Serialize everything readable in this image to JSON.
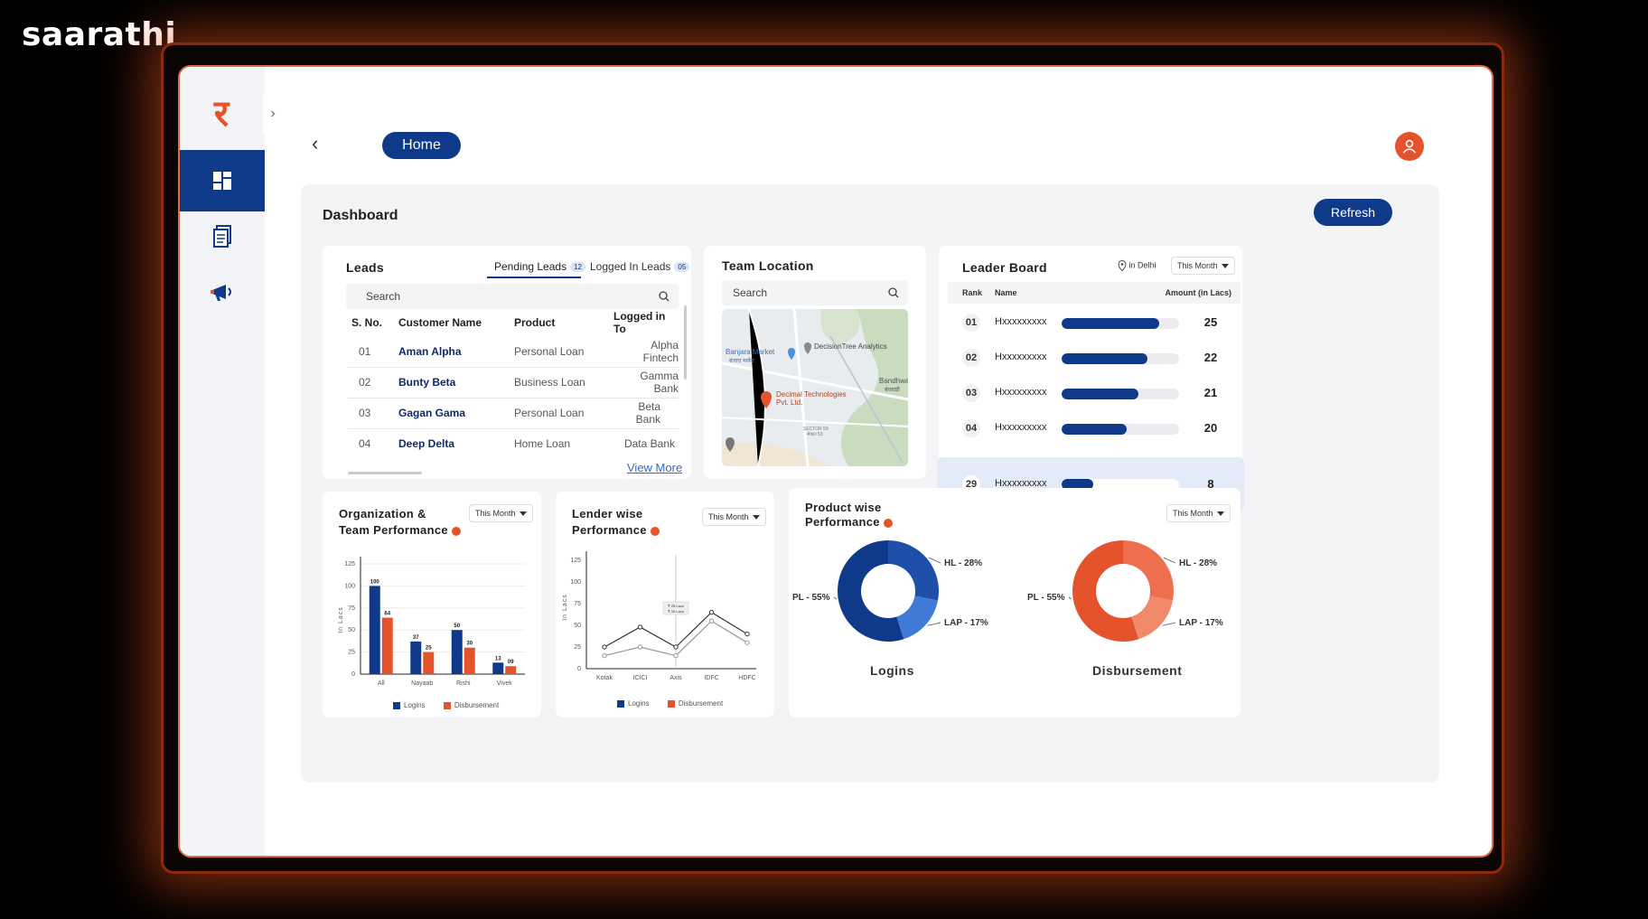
{
  "brand": "saarathi",
  "header": {
    "back_icon": "chevron-left-icon",
    "home_label": "Home",
    "avatar_icon": "user-icon"
  },
  "sidebar": {
    "logo": "र",
    "expand_icon": "chevron-right-icon",
    "items": [
      {
        "name": "dashboard",
        "icon": "grid-icon",
        "active": true
      },
      {
        "name": "documents",
        "icon": "document-icon",
        "active": false
      },
      {
        "name": "campaigns",
        "icon": "megaphone-icon",
        "active": false
      }
    ]
  },
  "dashboard": {
    "title": "Dashboard",
    "refresh_label": "Refresh"
  },
  "leads": {
    "title": "Leads",
    "tabs": [
      {
        "label": "Pending Leads",
        "count": "12"
      },
      {
        "label": "Logged In Leads",
        "count": "05"
      }
    ],
    "search_placeholder": "Search",
    "columns": [
      "S. No.",
      "Customer Name",
      "Product",
      "Logged in To"
    ],
    "rows": [
      {
        "sno": "01",
        "name": "Aman Alpha",
        "product": "Personal Loan",
        "lender": "Alpha Fintech"
      },
      {
        "sno": "02",
        "name": "Bunty Beta",
        "product": "Business Loan",
        "lender": "Gamma Bank"
      },
      {
        "sno": "03",
        "name": "Gagan Gama",
        "product": "Personal Loan",
        "lender": "Beta Bank"
      },
      {
        "sno": "04",
        "name": "Deep Delta",
        "product": "Home Loan",
        "lender": "Data Bank"
      }
    ],
    "view_more": "View More"
  },
  "team_location": {
    "title": "Team Location",
    "search_placeholder": "Search",
    "places": {
      "p1": "Banjara Market",
      "p1b": "बंजारा मार्केट",
      "p2": "DecisionTree Analytics",
      "p3": "Decimal Technologies",
      "p3b": "Pvt. Ltd.",
      "p4": "Bandhwa",
      "p4b": "बंधवाड़ी",
      "p5": "SECTOR 59",
      "p5b": "सेक्टर 59"
    }
  },
  "leader_board": {
    "title": "Leader Board",
    "location": "in Delhi",
    "period": "This Month",
    "columns": [
      "Rank",
      "Name",
      "Amount (in Lacs)"
    ],
    "rows": [
      {
        "rank": "01",
        "name": "Hxxxxxxxxx",
        "amount": "25",
        "fraction": 0.83
      },
      {
        "rank": "02",
        "name": "Hxxxxxxxxx",
        "amount": "22",
        "fraction": 0.73
      },
      {
        "rank": "03",
        "name": "Hxxxxxxxxx",
        "amount": "21",
        "fraction": 0.65
      },
      {
        "rank": "04",
        "name": "Hxxxxxxxxx",
        "amount": "20",
        "fraction": 0.55
      }
    ],
    "self_row": {
      "rank": "29",
      "name": "Hxxxxxxxxx",
      "amount": "8",
      "fraction": 0.27
    }
  },
  "org_perf": {
    "title_line1": "Organization &",
    "title_line2": "Team Performance",
    "period": "This Month"
  },
  "lender_perf": {
    "title_line1": "Lender wise",
    "title_line2": "Performance",
    "period": "This Month"
  },
  "product_perf": {
    "title_line1": "Product wise",
    "title_line2": "Performance",
    "period": "This Month",
    "donut1_label": "Logins",
    "donut2_label": "Disbursement"
  },
  "colors": {
    "navy": "#0f3a8a",
    "orange": "#e5532d",
    "light_blue": "#3f7ad6",
    "light_orange": "#f08a6a"
  },
  "chart_data": [
    {
      "type": "bar",
      "title": "Organization & Team Performance",
      "ylabel": "In Lacs",
      "categories": [
        "All",
        "Nayaab",
        "Rishi",
        "Vivek"
      ],
      "yticks": [
        "0",
        "25",
        "50",
        "75",
        "100",
        "125"
      ],
      "ylim": [
        0,
        125
      ],
      "series": [
        {
          "name": "Logins",
          "values": [
            100,
            37,
            50,
            13
          ]
        },
        {
          "name": "Disbursement",
          "values": [
            64,
            25,
            30,
            9
          ]
        }
      ],
      "value_labels": [
        [
          "100",
          "37",
          "50",
          "13"
        ],
        [
          "64",
          "25",
          "30",
          "09"
        ]
      ]
    },
    {
      "type": "line",
      "title": "Lender wise Performance",
      "ylabel": "In Lacs",
      "categories": [
        "Kotak",
        "ICICI",
        "Axis",
        "IDFC",
        "HDFC"
      ],
      "yticks": [
        "0",
        "25",
        "50",
        "75",
        "100",
        "125"
      ],
      "ylim": [
        0,
        125
      ],
      "series": [
        {
          "name": "Logins",
          "values": [
            25,
            48,
            25,
            65,
            40
          ]
        },
        {
          "name": "Disbursement",
          "values": [
            15,
            25,
            15,
            55,
            30
          ]
        }
      ],
      "tooltip": [
        "₹ 25 Lacs",
        "₹ 15 Lacs"
      ]
    },
    {
      "type": "pie",
      "title": "Logins",
      "slices": [
        {
          "label": "PL - 55%",
          "value": 55
        },
        {
          "label": "HL - 28%",
          "value": 28
        },
        {
          "label": "LAP - 17%",
          "value": 17
        }
      ]
    },
    {
      "type": "pie",
      "title": "Disbursement",
      "slices": [
        {
          "label": "PL - 55%",
          "value": 55
        },
        {
          "label": "HL - 28%",
          "value": 28
        },
        {
          "label": "LAP - 17%",
          "value": 17
        }
      ]
    }
  ]
}
